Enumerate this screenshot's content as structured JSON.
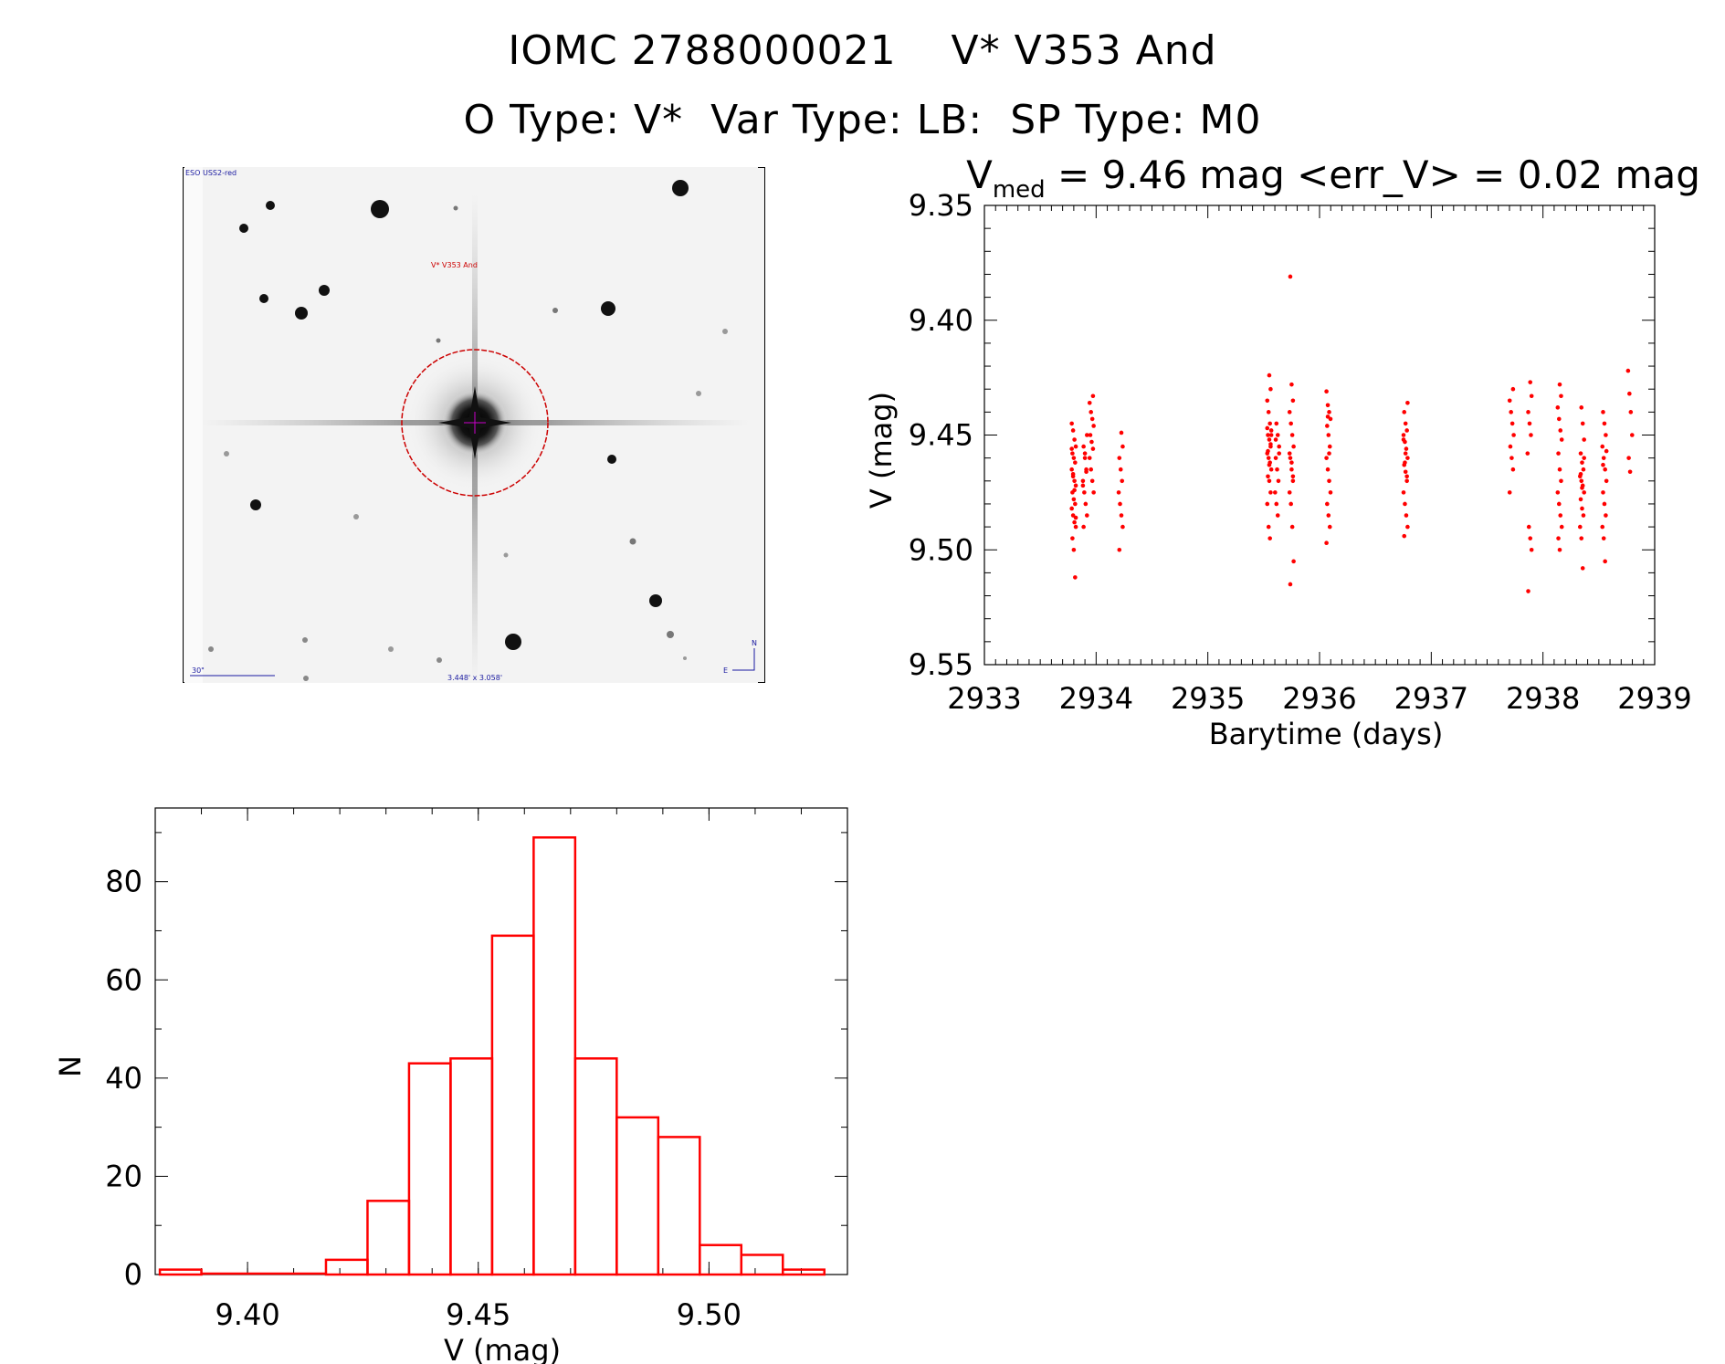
{
  "header": {
    "line1": "IOMC 2788000021    V* V353 And",
    "line2": "O Type: V*  Var Type: LB:  SP Type: M0"
  },
  "image_panel": {
    "survey_label": "ESO USS2-red",
    "target_label": "V* V353 And",
    "scale_label": "30\"",
    "fov_label": "3.448' x 3.058'",
    "compass_n": "N",
    "compass_e": "E"
  },
  "colors": {
    "data": "#ff0000",
    "axes": "#000000",
    "overlay": "#cc0000",
    "annot": "#1a1aa0"
  },
  "chart_data": [
    {
      "type": "scatter",
      "title_main": "V",
      "title_sub": "med",
      "title_rest": " = 9.46 mag <err_V> = 0.02 mag",
      "xlabel": "Barytime (days)",
      "ylabel": "V (mag)",
      "xlim": [
        2933,
        2939
      ],
      "ylim": [
        9.55,
        9.35
      ],
      "xticks": [
        "2933",
        "2934",
        "2935",
        "2936",
        "2937",
        "2938",
        "2939"
      ],
      "yticks": [
        "9.35",
        "9.40",
        "9.45",
        "9.50",
        "9.55"
      ],
      "groups": [
        {
          "x": 2933.8,
          "y": [
            9.445,
            9.448,
            9.452,
            9.455,
            9.458,
            9.46,
            9.462,
            9.465,
            9.467,
            9.47,
            9.472,
            9.475,
            9.478,
            9.48,
            9.482,
            9.485,
            9.488,
            9.49,
            9.495,
            9.5,
            9.512,
            9.456,
            9.468,
            9.474,
            9.486
          ]
        },
        {
          "x": 2933.9,
          "y": [
            9.45,
            9.455,
            9.46,
            9.465,
            9.47,
            9.475,
            9.48,
            9.485,
            9.49,
            9.458,
            9.466,
            9.472
          ]
        },
        {
          "x": 2933.96,
          "y": [
            9.433,
            9.436,
            9.44,
            9.443,
            9.446,
            9.45,
            9.453,
            9.456,
            9.46,
            9.465,
            9.47,
            9.475
          ]
        },
        {
          "x": 2934.22,
          "y": [
            9.449,
            9.455,
            9.46,
            9.465,
            9.47,
            9.475,
            9.48,
            9.485,
            9.49,
            9.5
          ]
        },
        {
          "x": 2935.55,
          "y": [
            9.424,
            9.43,
            9.435,
            9.44,
            9.445,
            9.448,
            9.45,
            9.452,
            9.455,
            9.458,
            9.46,
            9.462,
            9.465,
            9.468,
            9.47,
            9.475,
            9.48,
            9.49,
            9.495,
            9.45,
            9.457,
            9.463,
            9.454,
            9.447
          ]
        },
        {
          "x": 2935.62,
          "y": [
            9.445,
            9.45,
            9.455,
            9.46,
            9.465,
            9.47,
            9.475,
            9.48,
            9.485,
            9.458,
            9.452
          ]
        },
        {
          "x": 2935.75,
          "y": [
            9.381,
            9.428,
            9.435,
            9.44,
            9.445,
            9.45,
            9.455,
            9.46,
            9.465,
            9.47,
            9.475,
            9.48,
            9.49,
            9.505,
            9.515,
            9.462,
            9.468,
            9.458
          ]
        },
        {
          "x": 2936.08,
          "y": [
            9.431,
            9.437,
            9.44,
            9.443,
            9.446,
            9.45,
            9.455,
            9.46,
            9.465,
            9.47,
            9.475,
            9.48,
            9.485,
            9.49,
            9.497,
            9.442,
            9.458
          ]
        },
        {
          "x": 2936.77,
          "y": [
            9.436,
            9.44,
            9.445,
            9.448,
            9.45,
            9.453,
            9.456,
            9.46,
            9.463,
            9.466,
            9.47,
            9.475,
            9.48,
            9.485,
            9.49,
            9.494,
            9.458,
            9.468,
            9.452,
            9.462
          ]
        },
        {
          "x": 2937.72,
          "y": [
            9.43,
            9.435,
            9.44,
            9.445,
            9.45,
            9.455,
            9.46,
            9.465,
            9.475
          ]
        },
        {
          "x": 2937.88,
          "y": [
            9.427,
            9.433,
            9.44,
            9.445,
            9.45,
            9.458,
            9.49,
            9.495,
            9.5,
            9.518
          ]
        },
        {
          "x": 2938.15,
          "y": [
            9.428,
            9.433,
            9.438,
            9.443,
            9.448,
            9.452,
            9.458,
            9.465,
            9.47,
            9.475,
            9.48,
            9.485,
            9.49,
            9.495,
            9.5
          ]
        },
        {
          "x": 2938.35,
          "y": [
            9.438,
            9.445,
            9.452,
            9.458,
            9.462,
            9.465,
            9.468,
            9.47,
            9.472,
            9.475,
            9.478,
            9.482,
            9.485,
            9.49,
            9.495,
            9.508,
            9.46,
            9.467,
            9.473
          ]
        },
        {
          "x": 2938.55,
          "y": [
            9.44,
            9.445,
            9.45,
            9.455,
            9.46,
            9.465,
            9.47,
            9.475,
            9.48,
            9.485,
            9.49,
            9.495,
            9.505,
            9.457,
            9.463
          ]
        },
        {
          "x": 2938.78,
          "y": [
            9.422,
            9.432,
            9.44,
            9.45,
            9.46,
            9.466
          ]
        }
      ]
    },
    {
      "type": "histogram",
      "xlabel": "V (mag)",
      "ylabel": "N",
      "xlim": [
        9.38,
        9.53
      ],
      "ylim": [
        0,
        95
      ],
      "xticks": [
        "9.40",
        "9.45",
        "9.50"
      ],
      "yticks": [
        "0",
        "20",
        "40",
        "60",
        "80"
      ],
      "bin_width": 0.009,
      "bins": [
        {
          "left": 9.381,
          "count": 1
        },
        {
          "left": 9.39,
          "count": 0
        },
        {
          "left": 9.399,
          "count": 0
        },
        {
          "left": 9.408,
          "count": 0
        },
        {
          "left": 9.417,
          "count": 3
        },
        {
          "left": 9.426,
          "count": 15
        },
        {
          "left": 9.435,
          "count": 43
        },
        {
          "left": 9.444,
          "count": 44
        },
        {
          "left": 9.453,
          "count": 69
        },
        {
          "left": 9.462,
          "count": 89
        },
        {
          "left": 9.471,
          "count": 44
        },
        {
          "left": 9.48,
          "count": 32
        },
        {
          "left": 9.489,
          "count": 28
        },
        {
          "left": 9.498,
          "count": 6
        },
        {
          "left": 9.507,
          "count": 4
        },
        {
          "left": 9.516,
          "count": 1
        }
      ]
    }
  ]
}
